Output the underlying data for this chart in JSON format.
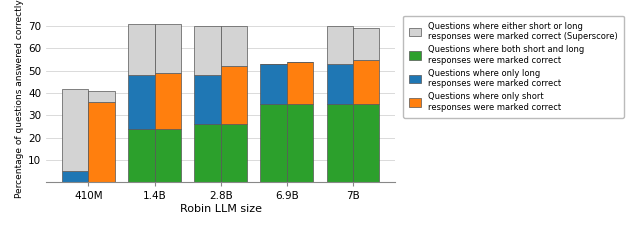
{
  "categories": [
    "410M",
    "1.4B",
    "2.8B",
    "6.9B",
    "7B"
  ],
  "bar_width": 0.4,
  "gray_color": "#d3d3d3",
  "green_color": "#2ca02c",
  "blue_color": "#1f77b4",
  "orange_color": "#ff7f0e",
  "bar_edge_color": "#555555",
  "left_green": [
    0,
    24,
    26,
    35,
    35
  ],
  "left_blue": [
    5,
    24,
    22,
    18,
    18
  ],
  "left_gray": [
    37,
    23,
    22,
    0,
    17
  ],
  "right_green": [
    0,
    24,
    26,
    35,
    35
  ],
  "right_orange": [
    36,
    25,
    26,
    19,
    20
  ],
  "right_gray": [
    5,
    22,
    18,
    0,
    14
  ],
  "ylim": [
    0,
    75
  ],
  "yticks": [
    10,
    20,
    30,
    40,
    50,
    60,
    70
  ],
  "ylabel": "Percentage of questions answered correctly",
  "xlabel": "Robin LLM size",
  "legend_labels": [
    "Questions where either short or long\nresponses were marked correct (Superscore)",
    "Questions where both short and long\nresponses were marked correct",
    "Questions where only long\nresponses were marked correct",
    "Questions where only short\nresponses were marked correct"
  ]
}
